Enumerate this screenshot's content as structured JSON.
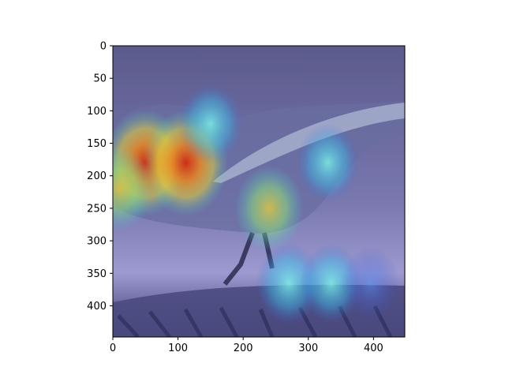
{
  "chart_data": {
    "type": "heatmap",
    "title": "",
    "xlabel": "",
    "ylabel": "",
    "xlim": [
      0,
      448
    ],
    "ylim": [
      448,
      0
    ],
    "x_ticks": [
      0,
      100,
      200,
      300,
      400
    ],
    "y_ticks": [
      0,
      50,
      100,
      150,
      200,
      250,
      300,
      350,
      400
    ],
    "grid": false,
    "colormap": "jet",
    "description_of_content": "attention heatmap over a bird image",
    "hotspots": [
      {
        "x": 50,
        "y": 180,
        "intensity": 1.0
      },
      {
        "x": 112,
        "y": 180,
        "intensity": 1.0
      },
      {
        "x": 150,
        "y": 120,
        "intensity": 0.5
      },
      {
        "x": 240,
        "y": 250,
        "intensity": 0.6
      },
      {
        "x": 330,
        "y": 180,
        "intensity": 0.45
      },
      {
        "x": 270,
        "y": 365,
        "intensity": 0.5
      },
      {
        "x": 335,
        "y": 365,
        "intensity": 0.45
      },
      {
        "x": 395,
        "y": 365,
        "intensity": 0.35
      },
      {
        "x": 10,
        "y": 220,
        "intensity": 0.55
      }
    ]
  }
}
